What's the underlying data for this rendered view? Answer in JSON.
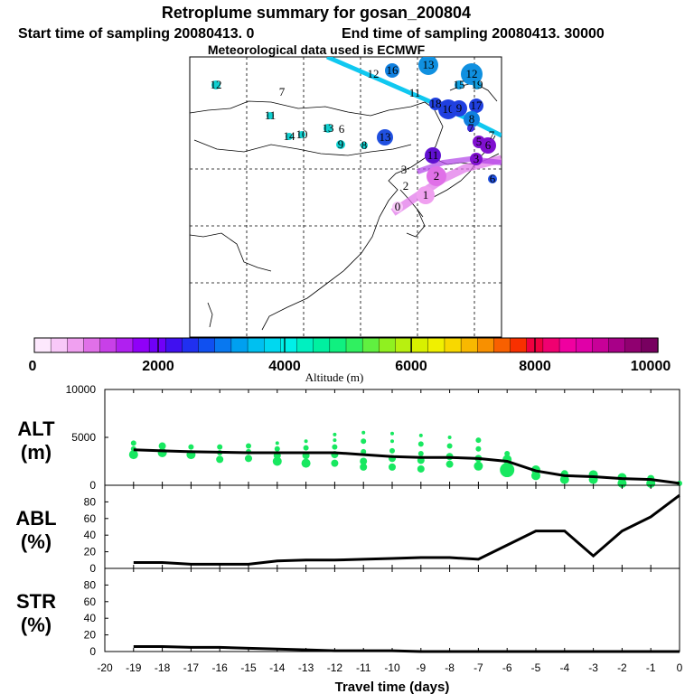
{
  "header": {
    "title": "Retroplume summary for gosan_200804",
    "subtitle_start": "Start time of sampling 20080413.     0",
    "subtitle_end": "End time of sampling 20080413. 30000",
    "met_note": "Meteorological data used is ECMWF"
  },
  "colorbar": {
    "label": "Altitude (m)",
    "tick_labels": [
      "0",
      "2000",
      "4000",
      "6000",
      "8000",
      "10000"
    ],
    "colors": [
      "#fde8fd",
      "#f8c8f8",
      "#f0a0f0",
      "#e070e8",
      "#c840e8",
      "#b020f0",
      "#9000f8",
      "#7000f8",
      "#4010f0",
      "#2030f0",
      "#1050f0",
      "#0878f0",
      "#00a0f0",
      "#00c0f0",
      "#00d8f0",
      "#00f0e8",
      "#00f0c0",
      "#00f0a0",
      "#10f080",
      "#30f060",
      "#60f040",
      "#90f020",
      "#b8f010",
      "#d8f000",
      "#f0f000",
      "#f8d800",
      "#f8b800",
      "#f89000",
      "#f86000",
      "#f83000",
      "#f00040",
      "#f00070",
      "#f000a0",
      "#e000a8",
      "#c80098",
      "#a80088",
      "#900070",
      "#780060"
    ]
  },
  "map": {
    "day_labels": [
      {
        "text": "12",
        "x": 239,
        "y": 94,
        "c": "#10d0d0",
        "r": 5
      },
      {
        "text": "7",
        "x": 312,
        "y": 102,
        "c": "",
        "r": 0
      },
      {
        "text": "11",
        "x": 299,
        "y": 128,
        "c": "#10d0d0",
        "r": 4
      },
      {
        "text": "13",
        "x": 363,
        "y": 142,
        "c": "#10d0d0",
        "r": 5
      },
      {
        "text": "6",
        "x": 378,
        "y": 143,
        "c": "",
        "r": 0
      },
      {
        "text": "14",
        "x": 320,
        "y": 151,
        "c": "#10d0d0",
        "r": 4
      },
      {
        "text": "10",
        "x": 334,
        "y": 149,
        "c": "#10d0d0",
        "r": 4
      },
      {
        "text": "9",
        "x": 377,
        "y": 160,
        "c": "#10d0d0",
        "r": 5
      },
      {
        "text": "8",
        "x": 403,
        "y": 161,
        "c": "#10d0d0",
        "r": 4
      },
      {
        "text": "13",
        "x": 426,
        "y": 152,
        "c": "#2050e0",
        "r": 9
      },
      {
        "text": "16",
        "x": 434,
        "y": 78,
        "c": "#1080e0",
        "r": 8
      },
      {
        "text": "13",
        "x": 474,
        "y": 72,
        "c": "#1090e0",
        "r": 11
      },
      {
        "text": "12",
        "x": 522,
        "y": 82,
        "c": "#1090e0",
        "r": 12
      },
      {
        "text": "12",
        "x": 413,
        "y": 82,
        "c": "",
        "r": 0
      },
      {
        "text": "11",
        "x": 459,
        "y": 103,
        "c": "",
        "r": 0
      },
      {
        "text": "15",
        "x": 508,
        "y": 94,
        "c": "#10a0e0",
        "r": 5
      },
      {
        "text": "19",
        "x": 528,
        "y": 94,
        "c": "#10a0e0",
        "r": 5
      },
      {
        "text": "10",
        "x": 496,
        "y": 121,
        "c": "#2040e0",
        "r": 11
      },
      {
        "text": "18",
        "x": 482,
        "y": 115,
        "c": "#2040e0",
        "r": 7
      },
      {
        "text": "9",
        "x": 508,
        "y": 120,
        "c": "#2040e0",
        "r": 9
      },
      {
        "text": "17",
        "x": 527,
        "y": 117,
        "c": "#2040e0",
        "r": 8
      },
      {
        "text": "8",
        "x": 522,
        "y": 132,
        "c": "#1080e0",
        "r": 9
      },
      {
        "text": "7",
        "x": 521,
        "y": 142,
        "c": "#4030e0",
        "r": 4
      },
      {
        "text": "6",
        "x": 540,
        "y": 161,
        "c": "#8010d0",
        "r": 9
      },
      {
        "text": "7",
        "x": 544,
        "y": 150,
        "c": "",
        "r": 0
      },
      {
        "text": "5",
        "x": 530,
        "y": 157,
        "c": "#8010d0",
        "r": 7
      },
      {
        "text": "11",
        "x": 479,
        "y": 172,
        "c": "#6010d0",
        "r": 9
      },
      {
        "text": "3",
        "x": 527,
        "y": 176,
        "c": "#8010d0",
        "r": 7
      },
      {
        "text": "2",
        "x": 483,
        "y": 195,
        "c": "#e070e8",
        "r": 11
      },
      {
        "text": "1",
        "x": 471,
        "y": 216,
        "c": "#f0a0f0",
        "r": 10
      },
      {
        "text": "0",
        "x": 440,
        "y": 229,
        "c": "#f8c8f8",
        "r": 6
      },
      {
        "text": "6",
        "x": 545,
        "y": 198,
        "c": "#2050e0",
        "r": 5
      },
      {
        "text": "3",
        "x": 447,
        "y": 188,
        "c": "",
        "r": 0
      },
      {
        "text": "2",
        "x": 449,
        "y": 206,
        "c": "",
        "r": 0
      }
    ]
  },
  "chart_data": [
    {
      "type": "scatter",
      "name": "ALT",
      "ylabel": "ALT (m)",
      "ylabel_lines": [
        "ALT",
        "(m)"
      ],
      "xlim": [
        -20,
        0
      ],
      "ylim": [
        0,
        10000
      ],
      "ytick_labels": [
        "0",
        "5000",
        "10000"
      ],
      "x": [
        -19,
        -18,
        -17,
        -16,
        -15,
        -14,
        -13,
        -12,
        -11,
        -10,
        -9,
        -8,
        -7,
        -6,
        -5,
        -4,
        -3,
        -2,
        -1,
        0
      ],
      "mean_line": [
        3700,
        3600,
        3500,
        3450,
        3400,
        3400,
        3400,
        3400,
        3200,
        3000,
        2900,
        2900,
        2800,
        2500,
        1500,
        1000,
        900,
        700,
        600,
        200
      ],
      "points": [
        {
          "x": -19,
          "y": 4400,
          "s": 3
        },
        {
          "x": -19,
          "y": 3800,
          "s": 3
        },
        {
          "x": -19,
          "y": 3200,
          "s": 5
        },
        {
          "x": -18,
          "y": 4100,
          "s": 4
        },
        {
          "x": -18,
          "y": 3400,
          "s": 5
        },
        {
          "x": -17,
          "y": 4000,
          "s": 3
        },
        {
          "x": -17,
          "y": 3200,
          "s": 5
        },
        {
          "x": -16,
          "y": 4000,
          "s": 3
        },
        {
          "x": -16,
          "y": 3400,
          "s": 3
        },
        {
          "x": -16,
          "y": 2700,
          "s": 4
        },
        {
          "x": -15,
          "y": 4100,
          "s": 3
        },
        {
          "x": -15,
          "y": 3500,
          "s": 3
        },
        {
          "x": -15,
          "y": 2800,
          "s": 4
        },
        {
          "x": -14,
          "y": 4400,
          "s": 2
        },
        {
          "x": -14,
          "y": 3800,
          "s": 3
        },
        {
          "x": -14,
          "y": 3100,
          "s": 4
        },
        {
          "x": -14,
          "y": 2500,
          "s": 5
        },
        {
          "x": -13,
          "y": 4600,
          "s": 2
        },
        {
          "x": -13,
          "y": 3900,
          "s": 3
        },
        {
          "x": -13,
          "y": 3100,
          "s": 4
        },
        {
          "x": -13,
          "y": 2300,
          "s": 5
        },
        {
          "x": -12,
          "y": 5300,
          "s": 2
        },
        {
          "x": -12,
          "y": 4700,
          "s": 2
        },
        {
          "x": -12,
          "y": 4000,
          "s": 3
        },
        {
          "x": -12,
          "y": 3200,
          "s": 4
        },
        {
          "x": -12,
          "y": 2300,
          "s": 4
        },
        {
          "x": -11,
          "y": 5500,
          "s": 2
        },
        {
          "x": -11,
          "y": 4600,
          "s": 3
        },
        {
          "x": -11,
          "y": 3500,
          "s": 3
        },
        {
          "x": -11,
          "y": 2500,
          "s": 4
        },
        {
          "x": -11,
          "y": 1900,
          "s": 4
        },
        {
          "x": -10,
          "y": 5400,
          "s": 2
        },
        {
          "x": -10,
          "y": 4600,
          "s": 2
        },
        {
          "x": -10,
          "y": 3600,
          "s": 3
        },
        {
          "x": -10,
          "y": 2800,
          "s": 4
        },
        {
          "x": -10,
          "y": 1900,
          "s": 4
        },
        {
          "x": -9,
          "y": 5200,
          "s": 2
        },
        {
          "x": -9,
          "y": 4300,
          "s": 3
        },
        {
          "x": -9,
          "y": 3300,
          "s": 3
        },
        {
          "x": -9,
          "y": 2600,
          "s": 4
        },
        {
          "x": -9,
          "y": 1700,
          "s": 4
        },
        {
          "x": -8,
          "y": 5000,
          "s": 2
        },
        {
          "x": -8,
          "y": 4100,
          "s": 3
        },
        {
          "x": -8,
          "y": 3000,
          "s": 4
        },
        {
          "x": -8,
          "y": 2200,
          "s": 4
        },
        {
          "x": -7,
          "y": 4700,
          "s": 3
        },
        {
          "x": -7,
          "y": 3800,
          "s": 3
        },
        {
          "x": -7,
          "y": 2800,
          "s": 4
        },
        {
          "x": -7,
          "y": 2000,
          "s": 5
        },
        {
          "x": -6,
          "y": 3300,
          "s": 3
        },
        {
          "x": -6,
          "y": 2700,
          "s": 5
        },
        {
          "x": -6,
          "y": 1600,
          "s": 8
        },
        {
          "x": -5,
          "y": 1600,
          "s": 5
        },
        {
          "x": -5,
          "y": 1000,
          "s": 5
        },
        {
          "x": -4,
          "y": 1200,
          "s": 4
        },
        {
          "x": -4,
          "y": 600,
          "s": 5
        },
        {
          "x": -3,
          "y": 1100,
          "s": 5
        },
        {
          "x": -3,
          "y": 600,
          "s": 5
        },
        {
          "x": -2,
          "y": 800,
          "s": 5
        },
        {
          "x": -2,
          "y": 200,
          "s": 5
        },
        {
          "x": -1,
          "y": 700,
          "s": 4
        },
        {
          "x": -1,
          "y": 200,
          "s": 5
        },
        {
          "x": 0,
          "y": 200,
          "s": 3
        }
      ]
    },
    {
      "type": "line",
      "name": "ABL",
      "ylabel": "ABL (%)",
      "ylabel_lines": [
        "ABL",
        "(%)"
      ],
      "xlim": [
        -20,
        0
      ],
      "ylim": [
        0,
        100
      ],
      "ytick_labels": [
        "0",
        "20",
        "40",
        "60",
        "80"
      ],
      "x": [
        -19,
        -18,
        -17,
        -16,
        -15,
        -14,
        -13,
        -12,
        -11,
        -10,
        -9,
        -8,
        -7,
        -6,
        -5,
        -4,
        -3,
        -2,
        -1,
        0
      ],
      "values": [
        7,
        7,
        5,
        5,
        5,
        9,
        10,
        10,
        11,
        12,
        13,
        13,
        11,
        28,
        45,
        45,
        15,
        45,
        62,
        88
      ]
    },
    {
      "type": "line",
      "name": "STR",
      "ylabel": "STR (%)",
      "ylabel_lines": [
        "STR",
        "(%)"
      ],
      "xlim": [
        -20,
        0
      ],
      "ylim": [
        0,
        100
      ],
      "ytick_labels": [
        "0",
        "20",
        "40",
        "60",
        "80"
      ],
      "xlabel": "Travel time (days)",
      "xtick_labels": [
        "-20",
        "-19",
        "-18",
        "-17",
        "-16",
        "-15",
        "-14",
        "-13",
        "-12",
        "-11",
        "-10",
        "-9",
        "-8",
        "-7",
        "-6",
        "-5",
        "-4",
        "-3",
        "-2",
        "-1",
        "0"
      ],
      "x": [
        -19,
        -18,
        -17,
        -16,
        -15,
        -14,
        -13,
        -12,
        -11,
        -10,
        -9,
        -8,
        -7,
        -6,
        -5,
        -4,
        -3,
        -2,
        -1,
        0
      ],
      "values": [
        6,
        6,
        5,
        5,
        4,
        3,
        2,
        1,
        1,
        1,
        0,
        0,
        0,
        0,
        0,
        0,
        0,
        0,
        0,
        0
      ]
    }
  ]
}
